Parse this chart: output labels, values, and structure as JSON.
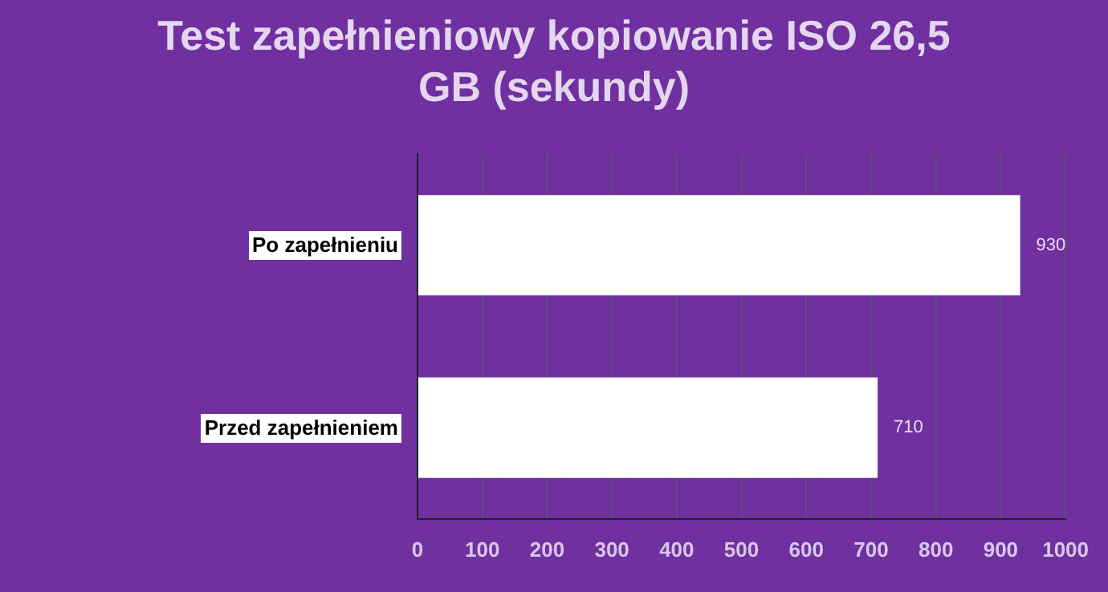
{
  "chart_data": {
    "type": "bar",
    "orientation": "horizontal",
    "title": "Test zapełnieniowy kopiowanie ISO 26,5 GB (sekundy)",
    "categories": [
      "Po zapełnieniu",
      "Przed zapełnieniem"
    ],
    "values": [
      930,
      710
    ],
    "color": "#ffffff",
    "xlim": [
      0,
      1000
    ],
    "xticks": [
      0,
      100,
      200,
      300,
      400,
      500,
      600,
      700,
      800,
      900,
      1000
    ],
    "grid": "x",
    "data_labels": true
  }
}
